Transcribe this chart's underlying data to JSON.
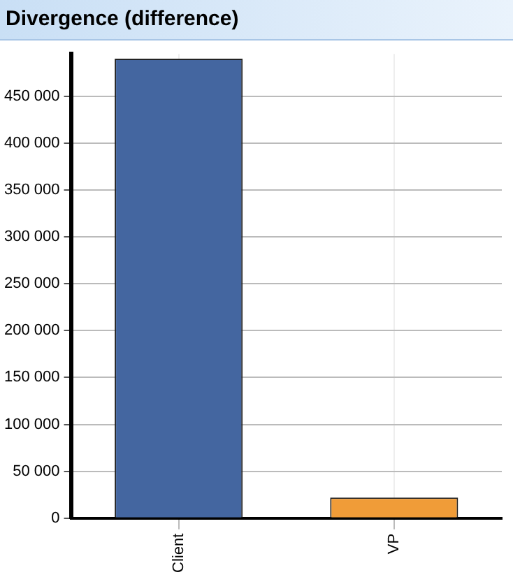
{
  "chart_data": {
    "type": "bar",
    "title": "Divergence (difference)",
    "categories": [
      "Client",
      "VP"
    ],
    "values": [
      490000,
      22000
    ],
    "colors": [
      "#4466a0",
      "#f09c38"
    ],
    "ylim": [
      0,
      495000
    ],
    "yticks": [
      {
        "value": 0,
        "label": "0"
      },
      {
        "value": 50000,
        "label": "50 000"
      },
      {
        "value": 100000,
        "label": "100 000"
      },
      {
        "value": 150000,
        "label": "150 000"
      },
      {
        "value": 200000,
        "label": "200 000"
      },
      {
        "value": 250000,
        "label": "250 000"
      },
      {
        "value": 300000,
        "label": "300 000"
      },
      {
        "value": 350000,
        "label": "350 000"
      },
      {
        "value": 400000,
        "label": "400 000"
      },
      {
        "value": 450000,
        "label": "450 000"
      }
    ],
    "grid": true
  }
}
